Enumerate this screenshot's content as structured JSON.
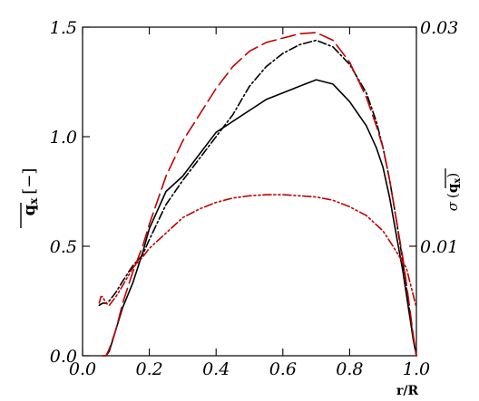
{
  "chart_data": {
    "type": "line",
    "title": "",
    "xlabel": "r/R",
    "ylabel_left": "q_x [−]",
    "ylabel_left_main": "q",
    "ylabel_left_sub": "x",
    "ylabel_left_unit": "[−]",
    "ylabel_right": "σ (q_x)",
    "ylabel_right_sigma": "σ",
    "ylabel_right_main": "q",
    "ylabel_right_sub": "x",
    "xlim": [
      0.0,
      1.0
    ],
    "ylim_left": [
      0.0,
      1.5
    ],
    "ylim_right": [
      0.0,
      0.03
    ],
    "x_ticks": [
      0.0,
      0.2,
      0.4,
      0.6,
      0.8,
      1.0
    ],
    "x_tick_labels": [
      "0.0",
      "0.2",
      "0.4",
      "0.6",
      "0.8",
      "1.0"
    ],
    "y_left_ticks": [
      0.0,
      0.5,
      1.0,
      1.5
    ],
    "y_left_tick_labels": [
      "0.0",
      "0.5",
      "1.0",
      "1.5"
    ],
    "y_right_ticks": [
      0.01,
      0.03
    ],
    "y_right_tick_labels": [
      "0.01",
      "0.03"
    ],
    "grid": false,
    "series": [
      {
        "axis": "left",
        "color": "#000000",
        "dash": "solid",
        "x": [
          0.06,
          0.07,
          0.08,
          0.1,
          0.12,
          0.15,
          0.18,
          0.2,
          0.25,
          0.3,
          0.35,
          0.4,
          0.45,
          0.5,
          0.55,
          0.6,
          0.65,
          0.7,
          0.75,
          0.8,
          0.85,
          0.88,
          0.9,
          0.92,
          0.94,
          0.96,
          0.98,
          0.99,
          1.0
        ],
        "y": [
          0.0,
          0.0,
          0.02,
          0.12,
          0.22,
          0.33,
          0.47,
          0.58,
          0.75,
          0.82,
          0.92,
          1.02,
          1.07,
          1.12,
          1.17,
          1.2,
          1.23,
          1.26,
          1.24,
          1.16,
          1.05,
          0.95,
          0.86,
          0.72,
          0.55,
          0.38,
          0.18,
          0.08,
          0.0
        ]
      },
      {
        "axis": "left",
        "color": "#000000",
        "dash": "dashdot",
        "x": [
          0.05,
          0.06,
          0.07,
          0.08,
          0.1,
          0.12,
          0.15,
          0.18,
          0.2,
          0.25,
          0.3,
          0.35,
          0.4,
          0.45,
          0.5,
          0.55,
          0.6,
          0.65,
          0.7,
          0.75,
          0.8,
          0.85,
          0.88,
          0.9,
          0.92,
          0.94,
          0.96,
          0.98,
          0.99,
          1.0
        ],
        "y": [
          0.23,
          0.24,
          0.24,
          0.25,
          0.29,
          0.34,
          0.41,
          0.46,
          0.53,
          0.69,
          0.8,
          0.9,
          1.0,
          1.1,
          1.23,
          1.32,
          1.38,
          1.42,
          1.44,
          1.41,
          1.33,
          1.2,
          1.07,
          0.95,
          0.8,
          0.62,
          0.42,
          0.2,
          0.08,
          0.0
        ]
      },
      {
        "axis": "left",
        "color": "#c00000",
        "dash": "longdash",
        "x": [
          0.06,
          0.07,
          0.08,
          0.1,
          0.12,
          0.15,
          0.18,
          0.2,
          0.25,
          0.3,
          0.35,
          0.4,
          0.45,
          0.5,
          0.55,
          0.6,
          0.65,
          0.7,
          0.75,
          0.8,
          0.85,
          0.88,
          0.9,
          0.92,
          0.94,
          0.96,
          0.98,
          0.99,
          1.0
        ],
        "y": [
          0.0,
          0.0,
          0.03,
          0.12,
          0.24,
          0.38,
          0.5,
          0.6,
          0.82,
          0.98,
          1.1,
          1.22,
          1.32,
          1.39,
          1.43,
          1.45,
          1.47,
          1.475,
          1.44,
          1.34,
          1.18,
          1.05,
          0.95,
          0.8,
          0.62,
          0.44,
          0.22,
          0.1,
          0.0
        ]
      },
      {
        "axis": "left",
        "color": "#c00000",
        "dash": "dashdotdot",
        "x": [
          0.05,
          0.055,
          0.06,
          0.07,
          0.08,
          0.1,
          0.12,
          0.15,
          0.18,
          0.2,
          0.25,
          0.3,
          0.35,
          0.4,
          0.45,
          0.5,
          0.55,
          0.6,
          0.65,
          0.7,
          0.75,
          0.8,
          0.85,
          0.9,
          0.93,
          0.95,
          0.97,
          0.98,
          0.99,
          1.0
        ],
        "y": [
          0.24,
          0.27,
          0.27,
          0.24,
          0.23,
          0.27,
          0.32,
          0.4,
          0.45,
          0.49,
          0.56,
          0.63,
          0.67,
          0.7,
          0.72,
          0.73,
          0.735,
          0.735,
          0.73,
          0.725,
          0.71,
          0.68,
          0.64,
          0.57,
          0.5,
          0.45,
          0.4,
          0.34,
          0.28,
          0.22
        ]
      }
    ]
  }
}
